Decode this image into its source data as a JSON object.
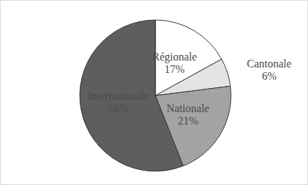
{
  "chart_data": {
    "type": "pie",
    "categories": [
      "Régionale",
      "Cantonale",
      "Nationale",
      "Internationale"
    ],
    "values": [
      17,
      6,
      21,
      56
    ],
    "value_labels": [
      "17%",
      "6%",
      "21%",
      "56%"
    ],
    "colors": [
      "#ffffff",
      "#e4e4e4",
      "#a3a3a3",
      "#5e5e5e"
    ],
    "data_labels": true
  }
}
